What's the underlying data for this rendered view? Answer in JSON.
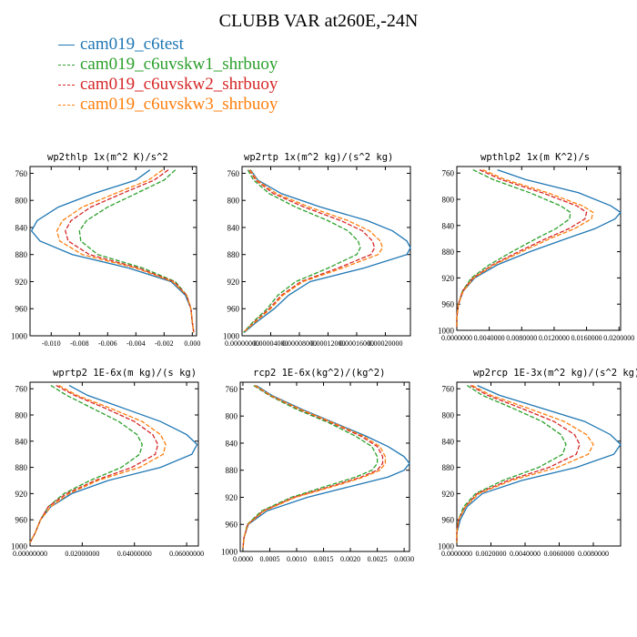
{
  "header": {
    "title": "CLUBB VAR at260E,-24N"
  },
  "legend": [
    {
      "label": "cam019_c6test",
      "color": "#1f77b4",
      "dash": ""
    },
    {
      "label": "cam019_c6uvskw1_shrbuoy",
      "color": "#2ca02c",
      "dash": "5,2"
    },
    {
      "label": "cam019_c6uvskw2_shrbuoy",
      "color": "#d62728",
      "dash": "5,2"
    },
    {
      "label": "cam019_c6uvskw3_shrbuoy",
      "color": "#ff7f0e",
      "dash": "5,2"
    }
  ],
  "chart_data": [
    {
      "type": "line",
      "title": "wp2thlp  1x(m^2 K)/s^2",
      "y_axis": {
        "range": [
          1000,
          750
        ],
        "ticks": [
          "760",
          "800",
          "840",
          "880",
          "920",
          "960",
          "1000"
        ]
      },
      "x_axis": {
        "range": [
          -0.0115,
          0.0003
        ],
        "ticks": [
          "-0.010",
          "-0.008",
          "-0.006",
          "-0.004",
          "-0.002",
          "0.000"
        ],
        "tick_values": [
          -0.01,
          -0.008,
          -0.006,
          -0.004,
          -0.002,
          0.0
        ]
      },
      "y": [
        755,
        770,
        790,
        810,
        830,
        845,
        860,
        880,
        900,
        920,
        940,
        960,
        980,
        995
      ],
      "series": [
        {
          "values": [
            -0.003,
            -0.004,
            -0.007,
            -0.0095,
            -0.011,
            -0.0114,
            -0.0108,
            -0.0085,
            -0.0045,
            -0.0015,
            -0.0005,
            -0.0001,
            0.0,
            0.0001
          ]
        },
        {
          "values": [
            -0.0012,
            -0.002,
            -0.004,
            -0.006,
            -0.0075,
            -0.008,
            -0.0079,
            -0.0067,
            -0.0035,
            -0.0012,
            -0.0004,
            -0.0001,
            0.0,
            0.0001
          ]
        },
        {
          "values": [
            -0.0017,
            -0.0027,
            -0.005,
            -0.0072,
            -0.0086,
            -0.009,
            -0.0088,
            -0.0073,
            -0.0038,
            -0.0013,
            -0.0004,
            -0.0001,
            0.0,
            0.0001
          ]
        },
        {
          "values": [
            -0.0021,
            -0.0031,
            -0.0055,
            -0.0078,
            -0.0092,
            -0.0096,
            -0.0094,
            -0.0078,
            -0.004,
            -0.0014,
            -0.0004,
            -0.0001,
            0.0,
            0.0001
          ]
        }
      ]
    },
    {
      "type": "line",
      "title": "wp2rtp  1x(m^2 kg)/(s^2 kg)",
      "y_axis": {
        "range": [
          1000,
          750
        ],
        "ticks": [
          "760",
          "800",
          "840",
          "880",
          "920",
          "960",
          "1000"
        ]
      },
      "x_axis": {
        "range": [
          0.0,
          0.000235
        ],
        "ticks": [
          "0.00000000",
          "0.00004000",
          "0.00008000",
          "0.00012000",
          "0.00016000",
          "0.00020000"
        ],
        "tick_values": [
          0.0,
          4e-05,
          8e-05,
          0.00012,
          0.00016,
          0.0002
        ]
      },
      "y": [
        755,
        770,
        790,
        810,
        830,
        845,
        860,
        870,
        880,
        900,
        920,
        940,
        960,
        980,
        995
      ],
      "series": [
        {
          "values": [
            1.2e-05,
            2.2e-05,
            5.5e-05,
            0.00011,
            0.000175,
            0.00021,
            0.00023,
            0.000235,
            0.00023,
            0.00017,
            9.5e-05,
            6.5e-05,
            4.5e-05,
            2e-05,
            3e-06
          ]
        },
        {
          "values": [
            8e-06,
            1.6e-05,
            3.8e-05,
            7.5e-05,
            0.00012,
            0.000148,
            0.000162,
            0.000165,
            0.00016,
            0.00012,
            7.5e-05,
            5e-05,
            3.5e-05,
            1.5e-05,
            2e-06
          ]
        },
        {
          "values": [
            1e-05,
            1.9e-05,
            4.4e-05,
            8.7e-05,
            0.000138,
            0.000168,
            0.000182,
            0.000185,
            0.00018,
            0.000134,
            8.2e-05,
            5.5e-05,
            3.8e-05,
            1.7e-05,
            2e-06
          ]
        },
        {
          "values": [
            1.1e-05,
            2.1e-05,
            4.8e-05,
            9.4e-05,
            0.000148,
            0.000178,
            0.000193,
            0.000196,
            0.00019,
            0.00014,
            8.5e-05,
            5.7e-05,
            4e-05,
            1.8e-05,
            2e-06
          ]
        }
      ]
    },
    {
      "type": "line",
      "title": "wpthlp2  1x(m K^2)/s",
      "y_axis": {
        "range": [
          1000,
          750
        ],
        "ticks": [
          "760",
          "800",
          "840",
          "880",
          "920",
          "960",
          "1000"
        ]
      },
      "x_axis": {
        "range": [
          0.0,
          0.0202
        ],
        "ticks": [
          "0.0000000",
          "0.0040000",
          "0.0080000",
          "0.0120000",
          "0.0160000",
          "0.0200000"
        ],
        "tick_values": [
          0.0,
          0.004,
          0.008,
          0.012,
          0.016,
          0.02
        ]
      },
      "y": [
        755,
        770,
        790,
        810,
        820,
        830,
        845,
        860,
        880,
        900,
        920,
        940,
        960,
        980,
        995
      ],
      "series": [
        {
          "values": [
            0.005,
            0.0085,
            0.015,
            0.019,
            0.0202,
            0.0195,
            0.017,
            0.0135,
            0.009,
            0.005,
            0.0022,
            0.0008,
            0.0002,
            0.0,
            0.0
          ]
        },
        {
          "values": [
            0.002,
            0.0045,
            0.009,
            0.0128,
            0.014,
            0.0139,
            0.0122,
            0.0098,
            0.0068,
            0.004,
            0.0018,
            0.0007,
            0.0002,
            0.0,
            0.0
          ]
        },
        {
          "values": [
            0.0028,
            0.0055,
            0.0105,
            0.0148,
            0.016,
            0.0158,
            0.0138,
            0.011,
            0.0076,
            0.0044,
            0.002,
            0.0007,
            0.0002,
            0.0,
            0.0
          ]
        },
        {
          "values": [
            0.0032,
            0.006,
            0.0112,
            0.0155,
            0.0168,
            0.0166,
            0.0145,
            0.0115,
            0.008,
            0.0046,
            0.0021,
            0.0008,
            0.0002,
            0.0,
            0.0
          ]
        }
      ]
    },
    {
      "type": "line",
      "title": "wprtp2  1E-6x(m kg)/(s kg)",
      "y_axis": {
        "range": [
          1000,
          750
        ],
        "ticks": [
          "760",
          "800",
          "840",
          "880",
          "920",
          "960",
          "1000"
        ]
      },
      "x_axis": {
        "range": [
          0.0,
          0.0645
        ],
        "ticks": [
          "0.00000000",
          "0.02000000",
          "0.04000000",
          "0.06000000"
        ],
        "tick_values": [
          0.0,
          0.02,
          0.04,
          0.06
        ]
      },
      "y": [
        755,
        770,
        790,
        810,
        830,
        845,
        860,
        880,
        900,
        920,
        940,
        960,
        980,
        995
      ],
      "series": [
        {
          "values": [
            0.015,
            0.022,
            0.036,
            0.05,
            0.06,
            0.064,
            0.062,
            0.05,
            0.03,
            0.016,
            0.008,
            0.004,
            0.002,
            0.0
          ]
        },
        {
          "values": [
            0.008,
            0.014,
            0.024,
            0.034,
            0.041,
            0.043,
            0.042,
            0.035,
            0.023,
            0.013,
            0.007,
            0.004,
            0.002,
            0.0
          ]
        },
        {
          "values": [
            0.01,
            0.017,
            0.029,
            0.04,
            0.047,
            0.049,
            0.048,
            0.039,
            0.025,
            0.014,
            0.007,
            0.004,
            0.002,
            0.0
          ]
        },
        {
          "values": [
            0.011,
            0.018,
            0.031,
            0.043,
            0.05,
            0.052,
            0.051,
            0.042,
            0.026,
            0.015,
            0.008,
            0.004,
            0.002,
            0.0
          ]
        }
      ]
    },
    {
      "type": "line",
      "title": "rcp2  1E-6x(kg^2)/(kg^2)",
      "y_axis": {
        "range": [
          1000,
          750
        ],
        "ticks": [
          "760",
          "800",
          "840",
          "880",
          "920",
          "960",
          "1000"
        ]
      },
      "x_axis": {
        "range": [
          -5e-05,
          0.0031
        ],
        "ticks": [
          "0.0000",
          "0.0005",
          "0.0010",
          "0.0015",
          "0.0020",
          "0.0025",
          "0.0030"
        ],
        "tick_values": [
          0.0,
          0.0005,
          0.001,
          0.0015,
          0.002,
          0.0025,
          0.003
        ]
      },
      "y": [
        755,
        770,
        790,
        810,
        830,
        845,
        860,
        870,
        880,
        890,
        900,
        920,
        940,
        960,
        980,
        995
      ],
      "series": [
        {
          "values": [
            0.00025,
            0.00055,
            0.0011,
            0.0017,
            0.0023,
            0.0027,
            0.003,
            0.0031,
            0.003,
            0.0027,
            0.0022,
            0.0012,
            0.00045,
            0.0001,
            2e-05,
            0.0
          ]
        },
        {
          "values": [
            0.0002,
            0.0005,
            0.001,
            0.0016,
            0.0021,
            0.0024,
            0.0025,
            0.0025,
            0.0024,
            0.0021,
            0.0017,
            0.0009,
            0.00035,
            8e-05,
            2e-05,
            0.0
          ]
        },
        {
          "values": [
            0.00022,
            0.00052,
            0.00105,
            0.00165,
            0.0022,
            0.0025,
            0.0026,
            0.0026,
            0.0025,
            0.0022,
            0.0018,
            0.00095,
            0.00038,
            9e-05,
            2e-05,
            0.0
          ]
        },
        {
          "values": [
            0.00023,
            0.00053,
            0.00107,
            0.00168,
            0.00225,
            0.00255,
            0.00265,
            0.00265,
            0.00255,
            0.00225,
            0.00185,
            0.00098,
            0.0004,
            9e-05,
            2e-05,
            0.0
          ]
        }
      ]
    },
    {
      "type": "line",
      "title": "wp2rcp  1E-3x(m^2 kg)/(s^2 kg)",
      "y_axis": {
        "range": [
          1000,
          750
        ],
        "ticks": [
          "760",
          "800",
          "840",
          "880",
          "920",
          "960",
          "1000"
        ]
      },
      "x_axis": {
        "range": [
          0.0,
          0.0096
        ],
        "ticks": [
          "0.0000000",
          "0.0020000",
          "0.0040000",
          "0.0060000",
          "0.0080000"
        ],
        "tick_values": [
          0.0,
          0.002,
          0.004,
          0.006,
          0.008
        ]
      },
      "y": [
        755,
        770,
        790,
        810,
        830,
        845,
        860,
        880,
        900,
        920,
        940,
        960,
        980,
        995
      ],
      "series": [
        {
          "values": [
            0.0012,
            0.0025,
            0.005,
            0.0075,
            0.009,
            0.0096,
            0.0092,
            0.007,
            0.0038,
            0.0015,
            0.0006,
            0.0002,
            0.0,
            0.0
          ]
        },
        {
          "values": [
            0.0006,
            0.0015,
            0.0033,
            0.005,
            0.0061,
            0.0064,
            0.0062,
            0.0048,
            0.0027,
            0.0011,
            0.0004,
            0.0001,
            0.0,
            0.0
          ]
        },
        {
          "values": [
            0.0008,
            0.0018,
            0.0038,
            0.0057,
            0.0069,
            0.0072,
            0.007,
            0.0054,
            0.003,
            0.0012,
            0.0005,
            0.0001,
            0.0,
            0.0
          ]
        },
        {
          "values": [
            0.0009,
            0.002,
            0.0042,
            0.0063,
            0.0076,
            0.008,
            0.0077,
            0.0059,
            0.0032,
            0.0013,
            0.0005,
            0.0001,
            0.0,
            0.0
          ]
        }
      ]
    }
  ]
}
